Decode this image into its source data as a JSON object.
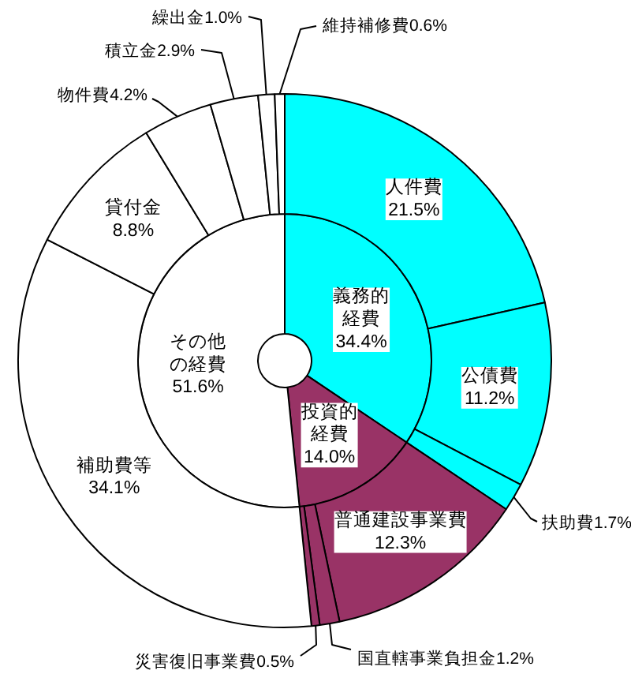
{
  "chart_data": [
    {
      "type": "donut",
      "categories": [
        "義務的経費",
        "投資的経費",
        "その他の経費"
      ],
      "values": [
        34.4,
        14.0,
        51.6
      ],
      "colors": [
        "#00ffff",
        "#993366",
        "#ffffff"
      ],
      "value_labels": [
        "34.4%",
        "14.0%",
        "51.6%"
      ]
    },
    {
      "type": "donut",
      "categories": [
        "人件費",
        "公債費",
        "扶助費",
        "普通建設事業費",
        "国直轄事業負担金",
        "災害復旧事業費",
        "補助費等",
        "貸付金",
        "物件費",
        "積立金",
        "繰出金",
        "維持補修費"
      ],
      "values": [
        21.5,
        11.2,
        1.7,
        12.3,
        1.2,
        0.5,
        34.1,
        8.8,
        4.2,
        2.9,
        1.0,
        0.6
      ],
      "colors": [
        "#00ffff",
        "#00ffff",
        "#00ffff",
        "#993366",
        "#993366",
        "#993366",
        "#ffffff",
        "#ffffff",
        "#ffffff",
        "#ffffff",
        "#ffffff",
        "#ffffff"
      ],
      "value_labels": [
        "21.5%",
        "11.2%",
        "1.7%",
        "12.3%",
        "1.2%",
        "0.5%",
        "34.1%",
        "8.8%",
        "4.2%",
        "2.9%",
        "1.0%",
        "0.6%"
      ]
    }
  ]
}
